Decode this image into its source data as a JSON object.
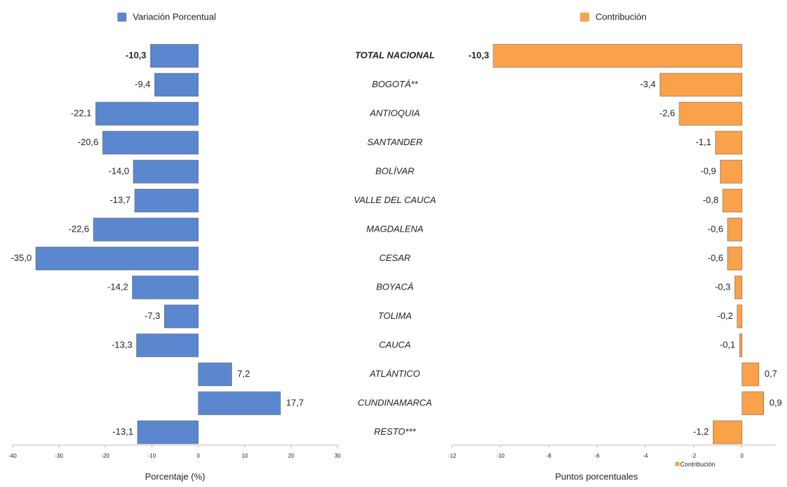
{
  "chart_data": [
    {
      "type": "bar",
      "orientation": "horizontal",
      "categories": [
        "TOTAL NACIONAL",
        "BOGOTÁ**",
        "ANTIOQUIA",
        "SANTANDER",
        "BOLÍVAR",
        "VALLE DEL CAUCA",
        "MAGDALENA",
        "CESAR",
        "BOYACÁ",
        "TOLIMA",
        "CAUCA",
        "ATLÁNTICO",
        "CUNDINAMARCA",
        "RESTO***"
      ],
      "series": [
        {
          "name": "Variación Porcentual",
          "color": "#5b87cf",
          "values": [
            -10.3,
            -9.4,
            -22.1,
            -20.6,
            -14.0,
            -13.7,
            -22.6,
            -35.0,
            -14.2,
            -7.3,
            -13.3,
            7.2,
            17.7,
            -13.1
          ],
          "value_labels": [
            "-10,3",
            "-9,4",
            "-22,1",
            "-20,6",
            "-14,0",
            "-13,7",
            "-22,6",
            "-35,0",
            "-14,2",
            "-7,3",
            "-13,3",
            "7,2",
            "17,7",
            "-13,1"
          ]
        }
      ],
      "xlim": [
        -40,
        30
      ],
      "xticks": [
        -40,
        -30,
        -20,
        -10,
        0,
        10,
        20,
        30
      ],
      "xlabel": "Porcentaje (%)"
    },
    {
      "type": "bar",
      "orientation": "horizontal",
      "series": [
        {
          "name": "Contribución",
          "color": "#f9a24a",
          "values": [
            -10.3,
            -3.4,
            -2.6,
            -1.1,
            -0.9,
            -0.8,
            -0.6,
            -0.6,
            -0.3,
            -0.2,
            -0.1,
            0.7,
            0.9,
            -1.2
          ],
          "value_labels": [
            "-10,3",
            "-3,4",
            "-2,6",
            "-1,1",
            "-0,9",
            "-0,8",
            "-0,6",
            "-0,6",
            "-0,3",
            "-0,2",
            "-0,1",
            "0,7",
            "0,9",
            "-1,2"
          ]
        }
      ],
      "xlim": [
        -12,
        1.4
      ],
      "xticks": [
        -12,
        -10,
        -8,
        -6,
        -4,
        -2,
        0
      ],
      "xlabel": "Puntos porcentuales"
    }
  ]
}
